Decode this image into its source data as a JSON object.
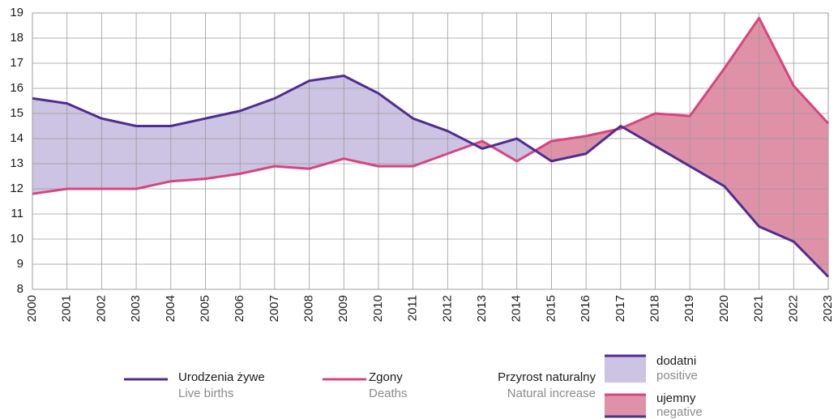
{
  "chart_data": {
    "type": "line",
    "categories": [
      "2000",
      "2001",
      "2002",
      "2003",
      "2004",
      "2005",
      "2006",
      "2007",
      "2008",
      "2009",
      "2010",
      "2011",
      "2012",
      "2013",
      "2014",
      "2015",
      "2016",
      "2017",
      "2018",
      "2019",
      "2020",
      "2021",
      "2022",
      "2023"
    ],
    "series": [
      {
        "name": "Urodzenia żywe",
        "name_en": "Live births",
        "color": "#4f2d91",
        "values": [
          15.6,
          15.4,
          14.8,
          14.5,
          14.5,
          14.8,
          15.1,
          15.6,
          16.3,
          16.5,
          15.8,
          14.8,
          14.3,
          13.6,
          14.0,
          13.1,
          13.4,
          14.5,
          13.7,
          12.9,
          12.1,
          10.5,
          9.9,
          8.5
        ]
      },
      {
        "name": "Zgony",
        "name_en": "Deaths",
        "color": "#d6457f",
        "values": [
          11.8,
          12.0,
          12.0,
          12.0,
          12.3,
          12.4,
          12.6,
          12.9,
          12.8,
          13.2,
          12.9,
          12.9,
          13.4,
          13.9,
          13.1,
          13.9,
          14.1,
          14.4,
          15.0,
          14.9,
          16.8,
          18.8,
          16.1,
          14.6
        ]
      }
    ],
    "fill_legend": {
      "title": "Przyrost naturalny",
      "title_en": "Natural increase",
      "positive": {
        "label": "dodatni",
        "label_en": "positive",
        "color": "#cdc3e2"
      },
      "negative": {
        "label": "ujemny",
        "label_en": "negative",
        "color": "#df91a8"
      }
    },
    "ylim": [
      8,
      19
    ],
    "yticks": [
      8,
      9,
      10,
      11,
      12,
      13,
      14,
      15,
      16,
      17,
      18,
      19
    ],
    "grid": true
  }
}
